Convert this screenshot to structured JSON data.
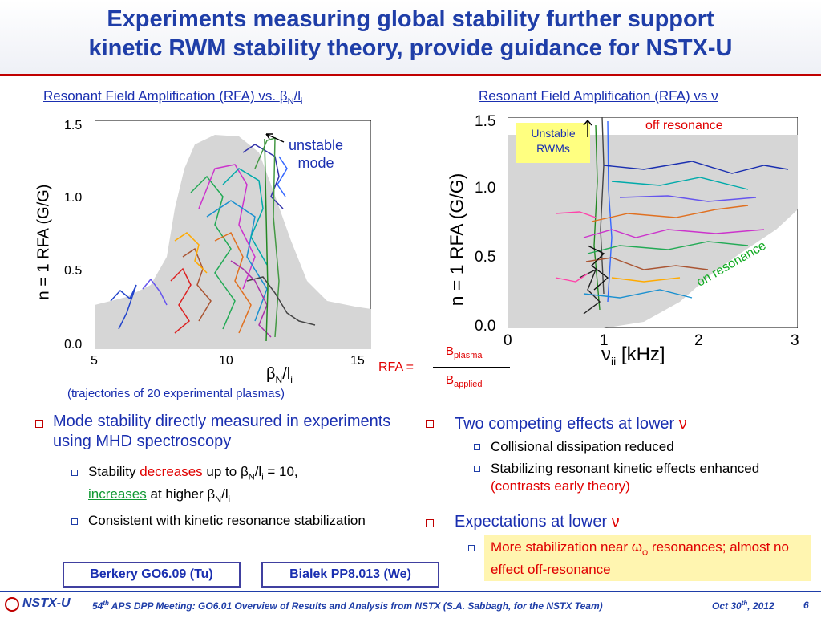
{
  "title": {
    "line1": "Experiments measuring global stability further support",
    "line2": "kinetic RWM stability theory, provide guidance for NSTX-U"
  },
  "left_panel": {
    "heading_pre": "Resonant Field Amplification (RFA) vs. ",
    "beta": "β",
    "sub_n": "N",
    "slash_l": "/l",
    "sub_i": "i",
    "ylabel": "n = 1 RFA (G/G)",
    "yticks": [
      "1.5",
      "1.0",
      "0.5",
      "0.0"
    ],
    "xticks": [
      "5",
      "10",
      "15"
    ],
    "annotation": "unstable\nmode",
    "annotation_line1": "unstable",
    "annotation_line2": "mode",
    "caption": "(trajectories of 20 experimental plasmas)"
  },
  "right_panel": {
    "heading_pre": "Resonant Field Amplification (RFA) vs ",
    "nu": "ν",
    "ylabel": "n = 1 RFA (G/G)",
    "yticks": [
      "1.5",
      "1.0",
      "0.5",
      "0.0"
    ],
    "xticks": [
      "0",
      "1",
      "2",
      "3"
    ],
    "xlabel_nu": "ν",
    "xlabel_sub": "ii",
    "xlabel_unit": " [kHz]",
    "unstable_line1": "Unstable",
    "unstable_line2": "RWMs",
    "off_resonance": "off resonance",
    "on_resonance": "on resonance"
  },
  "rfa_formula": {
    "lhs": "RFA =",
    "num_b": "B",
    "num_sub": "plasma",
    "den_b": "B",
    "den_sub": "applied"
  },
  "left_bullets": {
    "main": "Mode stability directly measured in experiments using MHD spectroscopy",
    "sub1_pre": "Stability ",
    "sub1_dec": "decreases",
    "sub1_mid": " up to ",
    "sub1_val": " = 10,",
    "sub1_inc": "increases",
    "sub1_post": " at higher ",
    "sub2": "Consistent with kinetic resonance stabilization"
  },
  "right_bullets": {
    "main1": "Two competing effects at lower ",
    "sub1": "Collisional dissipation reduced",
    "sub2_pre": "Stabilizing resonant kinetic effects enhanced ",
    "sub2_red": "(contrasts early theory)",
    "main2": "Expectations at lower ",
    "highlight_pre": "More stabilization near ",
    "omega": "ω",
    "phi": "φ",
    "highlight_post": " resonances; almost no effect off-resonance"
  },
  "refs": {
    "left": "Berkery GO6.09 (Tu)",
    "right": "Bialek PP8.013 (We)"
  },
  "footer": {
    "logo": "NSTX-U",
    "meeting_sup": "th",
    "meeting_num": "54",
    "meeting": " APS DPP Meeting: GO6.01 Overview of Results and Analysis from NSTX (S.A. Sabbagh, for the NSTX Team)",
    "date_pre": "Oct 30",
    "date_sup": "th",
    "date_post": ", 2012",
    "page": "6"
  },
  "colors": {
    "title": "#1f3ea8",
    "rule": "#c00000",
    "shade": "#d6d6d6",
    "highlight_box": "#fff5b0",
    "unstable_box": "#ffff80"
  }
}
